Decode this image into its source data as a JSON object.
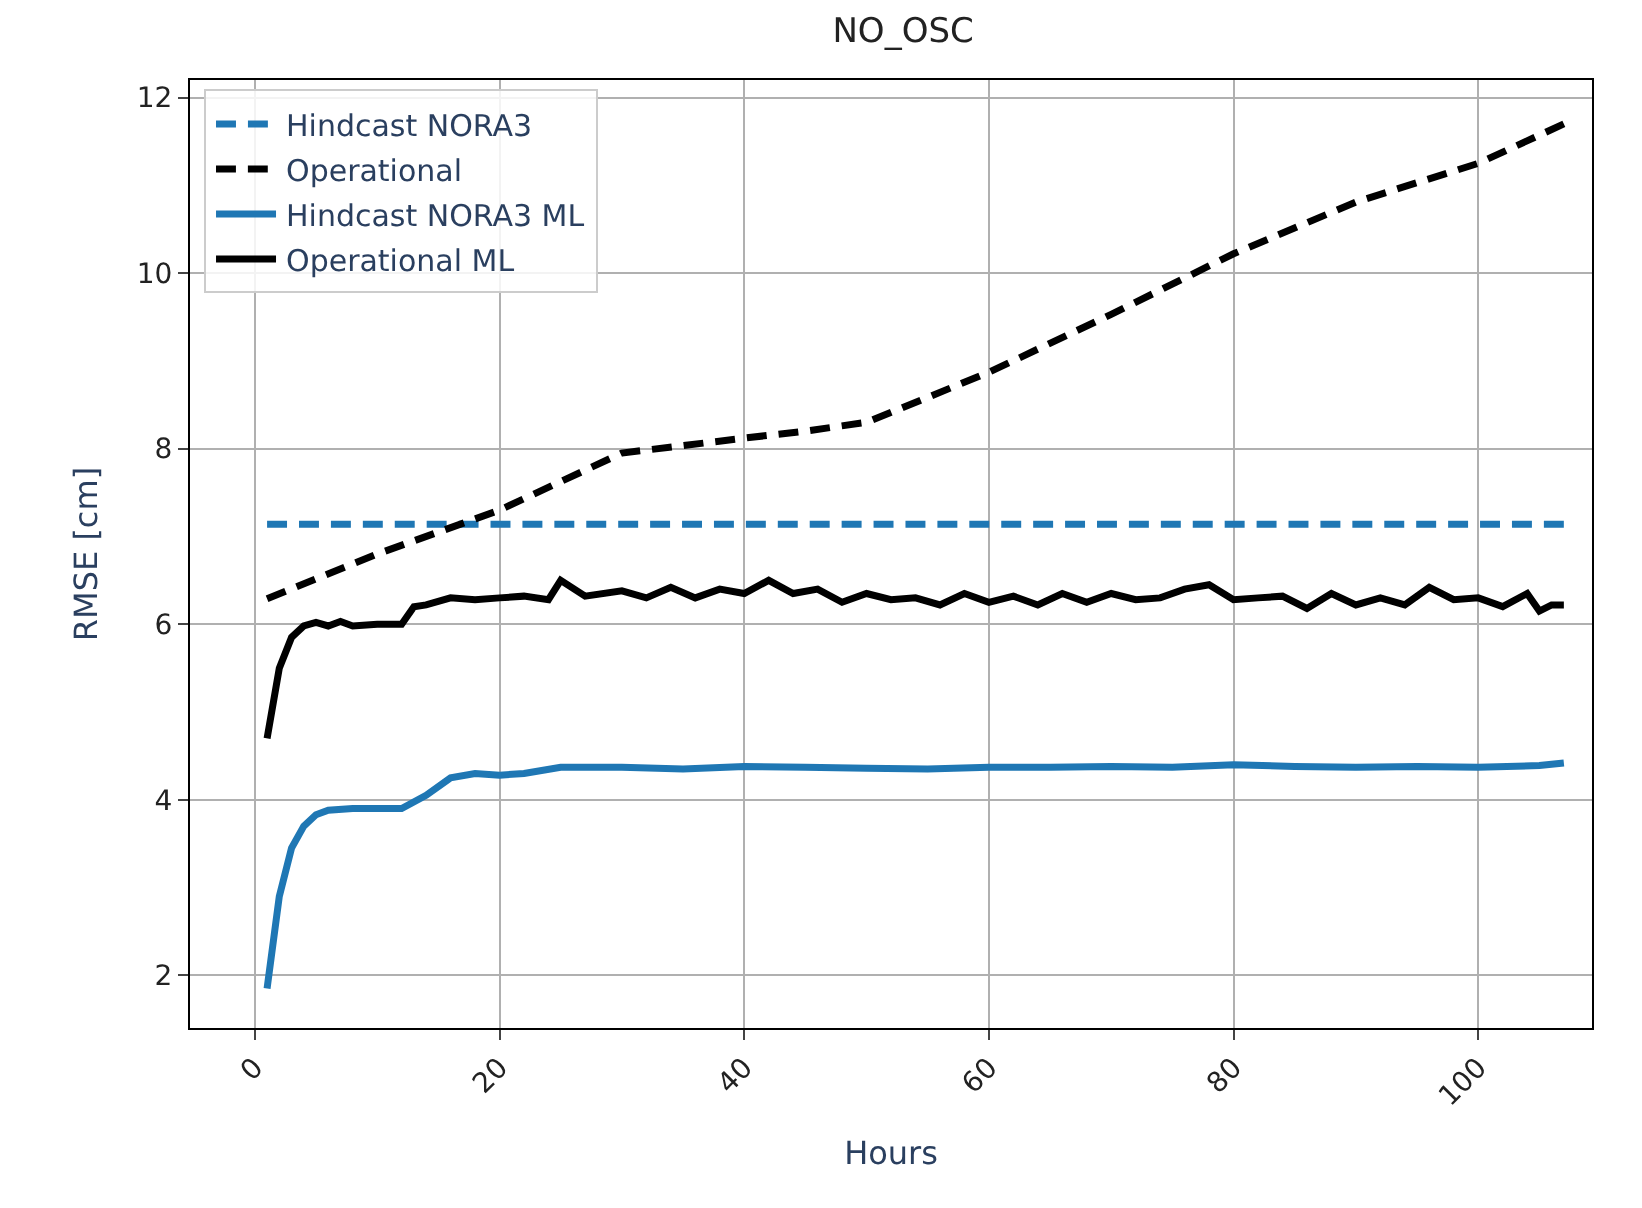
{
  "chart_data": {
    "type": "line",
    "title": "NO_OSC",
    "xlabel": "Hours",
    "ylabel": "RMSE [cm]",
    "xlim": [
      -5.3,
      109.3
    ],
    "ylim": [
      1.4,
      12.2
    ],
    "xticks": [
      0,
      20,
      40,
      60,
      80,
      100
    ],
    "yticks": [
      2,
      4,
      6,
      8,
      10,
      12
    ],
    "grid": true,
    "legend": "top left",
    "marker": "none",
    "series": [
      {
        "name": "Hindcast NORA3",
        "color": "#1f77b4",
        "line_style": "dashed",
        "x": [
          1,
          107
        ],
        "values": [
          7.14,
          7.14
        ]
      },
      {
        "name": "Operational",
        "color": "#000000",
        "line_style": "dashed",
        "x": [
          1,
          10,
          20,
          30,
          40,
          45,
          50,
          60,
          70,
          80,
          90,
          100,
          107
        ],
        "values": [
          6.29,
          6.8,
          7.3,
          7.95,
          8.12,
          8.2,
          8.3,
          8.87,
          9.53,
          10.22,
          10.81,
          11.25,
          11.7
        ]
      },
      {
        "name": "Hindcast NORA3 ML",
        "color": "#1f77b4",
        "line_style": "solid",
        "x": [
          1,
          2,
          3,
          4,
          5,
          6,
          8,
          10,
          12,
          14,
          16,
          18,
          20,
          22,
          25,
          30,
          35,
          40,
          45,
          50,
          55,
          60,
          65,
          70,
          75,
          80,
          85,
          90,
          95,
          100,
          105,
          107
        ],
        "values": [
          1.85,
          2.9,
          3.45,
          3.7,
          3.83,
          3.88,
          3.9,
          3.9,
          3.9,
          4.05,
          4.25,
          4.3,
          4.28,
          4.3,
          4.37,
          4.37,
          4.35,
          4.38,
          4.37,
          4.36,
          4.35,
          4.37,
          4.37,
          4.38,
          4.37,
          4.4,
          4.38,
          4.37,
          4.38,
          4.37,
          4.39,
          4.42
        ]
      },
      {
        "name": "Operational ML",
        "color": "#000000",
        "line_style": "solid",
        "x": [
          1,
          2,
          3,
          4,
          5,
          6,
          7,
          8,
          10,
          12,
          13,
          14,
          16,
          18,
          20,
          22,
          24,
          25,
          27,
          30,
          32,
          34,
          36,
          38,
          40,
          42,
          44,
          46,
          48,
          50,
          52,
          54,
          56,
          58,
          60,
          62,
          64,
          66,
          68,
          70,
          72,
          74,
          76,
          78,
          80,
          82,
          84,
          86,
          88,
          90,
          92,
          94,
          96,
          98,
          100,
          102,
          104,
          105,
          106,
          107
        ],
        "values": [
          4.7,
          5.5,
          5.85,
          5.98,
          6.02,
          5.98,
          6.03,
          5.98,
          6.0,
          6.0,
          6.2,
          6.22,
          6.3,
          6.28,
          6.3,
          6.32,
          6.28,
          6.5,
          6.32,
          6.38,
          6.3,
          6.42,
          6.3,
          6.4,
          6.35,
          6.5,
          6.35,
          6.4,
          6.25,
          6.35,
          6.28,
          6.3,
          6.22,
          6.35,
          6.25,
          6.32,
          6.22,
          6.35,
          6.25,
          6.35,
          6.28,
          6.3,
          6.4,
          6.45,
          6.28,
          6.3,
          6.32,
          6.18,
          6.35,
          6.22,
          6.3,
          6.22,
          6.42,
          6.28,
          6.3,
          6.2,
          6.35,
          6.15,
          6.22,
          6.22
        ]
      }
    ]
  }
}
